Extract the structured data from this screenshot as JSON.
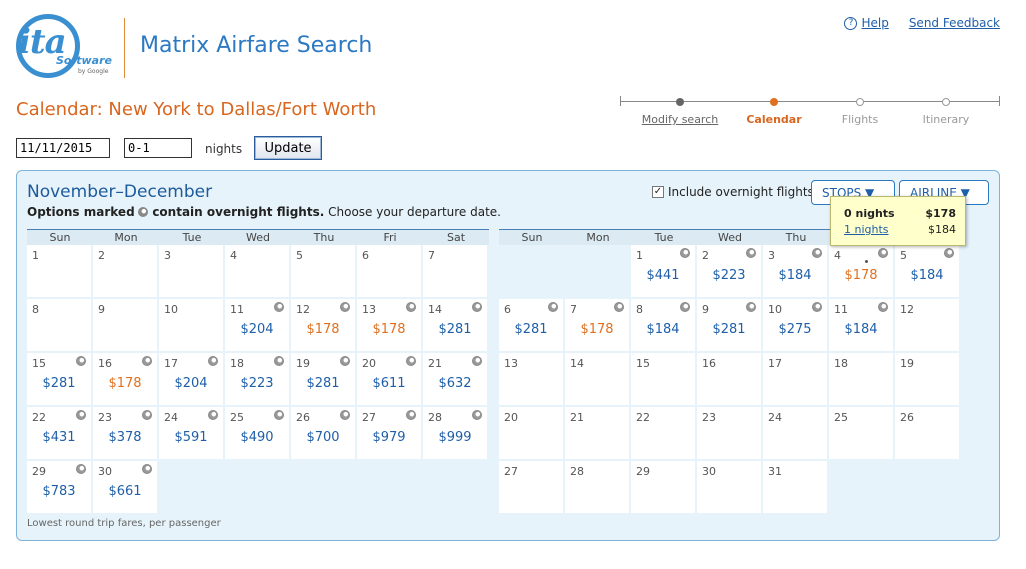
{
  "header": {
    "logo_text": "ita",
    "logo_software": "Software",
    "logo_by": "by Google",
    "app_title": "Matrix Airfare Search",
    "help_label": "Help",
    "feedback_label": "Send Feedback"
  },
  "page_title": "Calendar: New York to Dallas/Fort Worth",
  "steps": [
    {
      "label": "Modify search",
      "state": "done"
    },
    {
      "label": "Calendar",
      "state": "active"
    },
    {
      "label": "Flights",
      "state": "todo"
    },
    {
      "label": "Itinerary",
      "state": "todo"
    }
  ],
  "search": {
    "date_value": "11/11/2015",
    "nights_value": "0-1",
    "nights_label": "nights",
    "update_label": "Update"
  },
  "calendar": {
    "title": "November–December",
    "subtitle_bold_1": "Options marked",
    "subtitle_bold_2": "contain overnight flights.",
    "subtitle_rest": "Choose your departure date.",
    "overnight_label": "Include overnight flights",
    "overnight_checked": "✓",
    "stops_label": "STOPS ▼",
    "airline_label": "AIRLINE ▼",
    "weekdays": [
      "Sun",
      "Mon",
      "Tue",
      "Wed",
      "Thu",
      "Fri",
      "Sat"
    ],
    "footnote": "Lowest round trip fares, per passenger",
    "tooltip": {
      "nights_0": "0 nights",
      "price_0": "$178",
      "nights_1": "1 nights",
      "price_1": "$184"
    },
    "months": [
      {
        "name": "November",
        "start_offset": 0,
        "days": [
          {
            "d": "1",
            "p": "",
            "m": false,
            "low": false
          },
          {
            "d": "2",
            "p": "",
            "m": false,
            "low": false
          },
          {
            "d": "3",
            "p": "",
            "m": false,
            "low": false
          },
          {
            "d": "4",
            "p": "",
            "m": false,
            "low": false
          },
          {
            "d": "5",
            "p": "",
            "m": false,
            "low": false
          },
          {
            "d": "6",
            "p": "",
            "m": false,
            "low": false
          },
          {
            "d": "7",
            "p": "",
            "m": false,
            "low": false
          },
          {
            "d": "8",
            "p": "",
            "m": false,
            "low": false
          },
          {
            "d": "9",
            "p": "",
            "m": false,
            "low": false
          },
          {
            "d": "10",
            "p": "",
            "m": false,
            "low": false
          },
          {
            "d": "11",
            "p": "$204",
            "m": true,
            "low": false
          },
          {
            "d": "12",
            "p": "$178",
            "m": true,
            "low": true
          },
          {
            "d": "13",
            "p": "$178",
            "m": true,
            "low": true
          },
          {
            "d": "14",
            "p": "$281",
            "m": true,
            "low": false
          },
          {
            "d": "15",
            "p": "$281",
            "m": true,
            "low": false
          },
          {
            "d": "16",
            "p": "$178",
            "m": true,
            "low": true
          },
          {
            "d": "17",
            "p": "$204",
            "m": true,
            "low": false
          },
          {
            "d": "18",
            "p": "$223",
            "m": true,
            "low": false
          },
          {
            "d": "19",
            "p": "$281",
            "m": true,
            "low": false
          },
          {
            "d": "20",
            "p": "$611",
            "m": true,
            "low": false
          },
          {
            "d": "21",
            "p": "$632",
            "m": true,
            "low": false
          },
          {
            "d": "22",
            "p": "$431",
            "m": true,
            "low": false
          },
          {
            "d": "23",
            "p": "$378",
            "m": true,
            "low": false
          },
          {
            "d": "24",
            "p": "$591",
            "m": true,
            "low": false
          },
          {
            "d": "25",
            "p": "$490",
            "m": true,
            "low": false
          },
          {
            "d": "26",
            "p": "$700",
            "m": true,
            "low": false
          },
          {
            "d": "27",
            "p": "$979",
            "m": true,
            "low": false
          },
          {
            "d": "28",
            "p": "$999",
            "m": true,
            "low": false
          },
          {
            "d": "29",
            "p": "$783",
            "m": true,
            "low": false
          },
          {
            "d": "30",
            "p": "$661",
            "m": true,
            "low": false
          }
        ]
      },
      {
        "name": "December",
        "start_offset": 2,
        "days": [
          {
            "d": "1",
            "p": "$441",
            "m": true,
            "low": false
          },
          {
            "d": "2",
            "p": "$223",
            "m": true,
            "low": false
          },
          {
            "d": "3",
            "p": "$184",
            "m": true,
            "low": false
          },
          {
            "d": "4",
            "p": "$178",
            "m": true,
            "low": true,
            "sel": true
          },
          {
            "d": "5",
            "p": "$184",
            "m": true,
            "low": false
          },
          {
            "d": "6",
            "p": "$281",
            "m": true,
            "low": false
          },
          {
            "d": "7",
            "p": "$178",
            "m": true,
            "low": true
          },
          {
            "d": "8",
            "p": "$184",
            "m": true,
            "low": false
          },
          {
            "d": "9",
            "p": "$281",
            "m": true,
            "low": false
          },
          {
            "d": "10",
            "p": "$275",
            "m": true,
            "low": false
          },
          {
            "d": "11",
            "p": "$184",
            "m": true,
            "low": false
          },
          {
            "d": "12",
            "p": "",
            "m": false,
            "low": false
          },
          {
            "d": "13",
            "p": "",
            "m": false,
            "low": false
          },
          {
            "d": "14",
            "p": "",
            "m": false,
            "low": false
          },
          {
            "d": "15",
            "p": "",
            "m": false,
            "low": false
          },
          {
            "d": "16",
            "p": "",
            "m": false,
            "low": false
          },
          {
            "d": "17",
            "p": "",
            "m": false,
            "low": false
          },
          {
            "d": "18",
            "p": "",
            "m": false,
            "low": false
          },
          {
            "d": "19",
            "p": "",
            "m": false,
            "low": false
          },
          {
            "d": "20",
            "p": "",
            "m": false,
            "low": false
          },
          {
            "d": "21",
            "p": "",
            "m": false,
            "low": false
          },
          {
            "d": "22",
            "p": "",
            "m": false,
            "low": false
          },
          {
            "d": "23",
            "p": "",
            "m": false,
            "low": false
          },
          {
            "d": "24",
            "p": "",
            "m": false,
            "low": false
          },
          {
            "d": "25",
            "p": "",
            "m": false,
            "low": false
          },
          {
            "d": "26",
            "p": "",
            "m": false,
            "low": false
          },
          {
            "d": "27",
            "p": "",
            "m": false,
            "low": false
          },
          {
            "d": "28",
            "p": "",
            "m": false,
            "low": false
          },
          {
            "d": "29",
            "p": "",
            "m": false,
            "low": false
          },
          {
            "d": "30",
            "p": "",
            "m": false,
            "low": false
          },
          {
            "d": "31",
            "p": "",
            "m": false,
            "low": false
          }
        ]
      }
    ]
  }
}
